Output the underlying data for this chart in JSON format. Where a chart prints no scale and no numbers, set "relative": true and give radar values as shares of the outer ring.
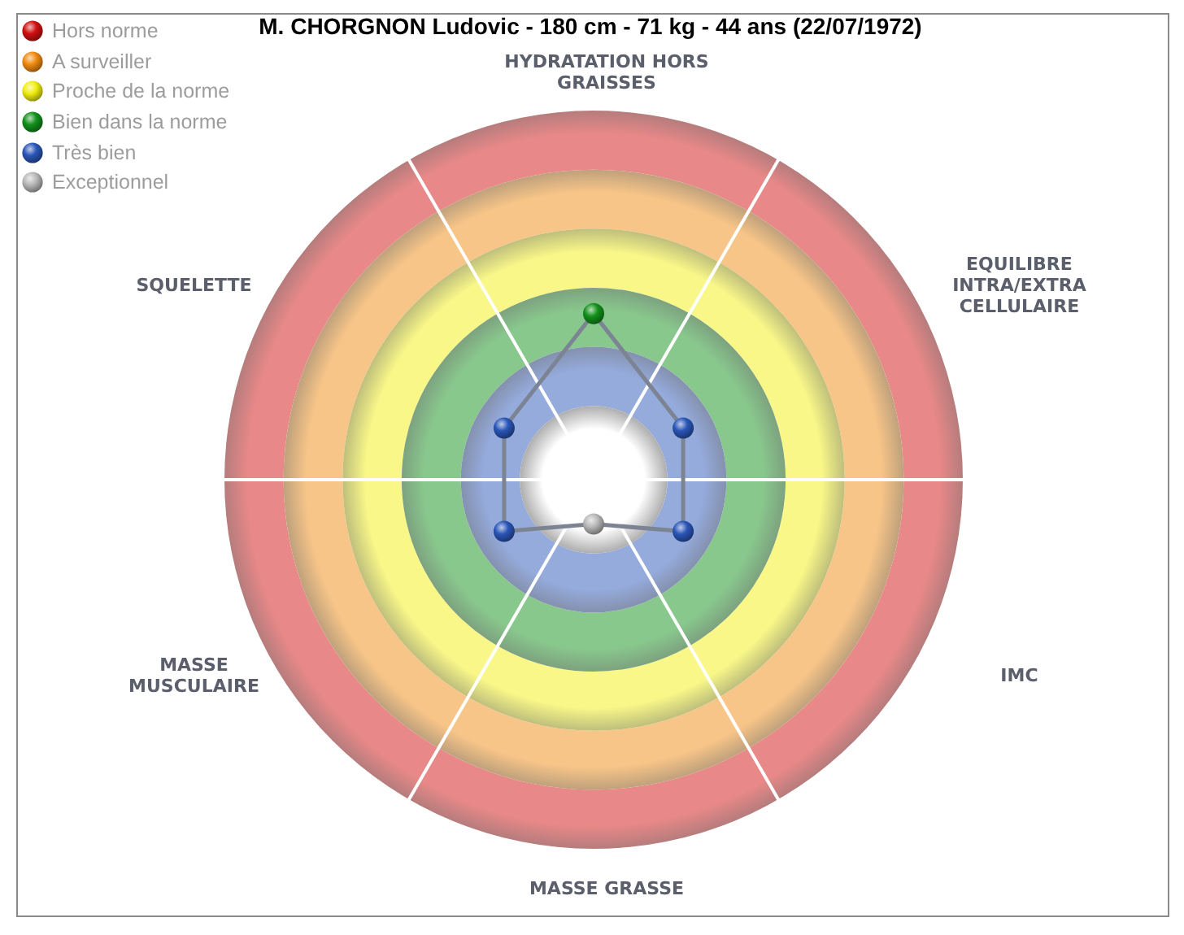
{
  "chart_data": {
    "type": "radar",
    "title": "M. CHORGNON Ludovic - 180 cm - 71 kg - 44 ans (22/07/1972)",
    "categories": [
      "HYDRATATION HORS GRAISSES",
      "EQUILIBRE INTRA/EXTRA CELLULAIRE",
      "IMC",
      "MASSE GRASSE",
      "MASSE MUSCULAIRE",
      "SQUELETTE"
    ],
    "relative": true,
    "series": [
      {
        "color": "#7c8494",
        "colors": [
          "#12911a",
          "#2a56b8",
          "#2a56b8",
          "#b9b9b9",
          "#2a56b8",
          "#2a56b8"
        ],
        "values": [
          0.45,
          0.28,
          0.28,
          0.12,
          0.28,
          0.28
        ]
      },
      {
        "name": "Hors norme",
        "color": "#d01010",
        "values": [
          null,
          null,
          null,
          null,
          null,
          null
        ]
      },
      {
        "name": "A surveiller",
        "color": "#f08a10",
        "values": [
          null,
          null,
          null,
          null,
          null,
          null
        ]
      },
      {
        "name": "Proche de la norme",
        "color": "#f0ee10",
        "values": [
          null,
          null,
          null,
          null,
          null,
          null
        ]
      },
      {
        "name": "Bien dans la norme",
        "color": "#12911a",
        "values": [
          null,
          null,
          null,
          null,
          null,
          null
        ]
      },
      {
        "name": "Très bien",
        "color": "#2a56b8",
        "values": [
          null,
          null,
          null,
          null,
          null,
          null
        ]
      },
      {
        "name": "Exceptionnel",
        "color": "#b9b9b9",
        "values": [
          null,
          null,
          null,
          null,
          null,
          null
        ]
      }
    ],
    "legend": "top left",
    "marker": "circle"
  }
}
